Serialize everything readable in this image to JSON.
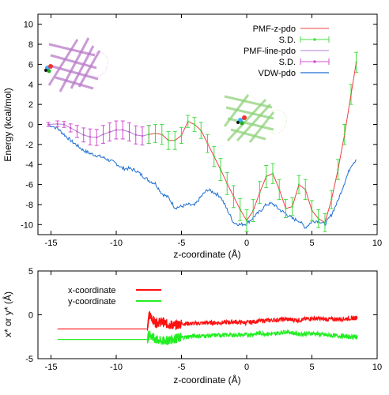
{
  "chart_data": [
    {
      "type": "line",
      "xlabel": "z-coordinate (Å)",
      "ylabel": "Energy (kcal/mol)",
      "xlim": [
        -16,
        10
      ],
      "ylim": [
        -11,
        11
      ],
      "xticks": [
        "-15",
        "-10",
        "-5",
        "0",
        "5",
        "10"
      ],
      "yticks": [
        "-10",
        "-8",
        "-6",
        "-4",
        "-2",
        "0",
        "2",
        "4",
        "6",
        "8",
        "10"
      ],
      "grid": false,
      "legend_position": "top-right",
      "series": [
        {
          "name": "PMF-line-pdo",
          "color": "#b27fd4",
          "error_name": "S.D.",
          "error_color": "#d04fd0",
          "x": [
            -15.2,
            -14.5,
            -14.0,
            -13.5,
            -13.0,
            -12.5,
            -12.0,
            -11.5,
            -11.0,
            -10.5,
            -10.0,
            -9.5,
            -9.0,
            -8.5,
            -8.0,
            -7.5
          ],
          "y": [
            0.0,
            0.05,
            0.0,
            -0.35,
            -0.7,
            -1.05,
            -1.25,
            -1.3,
            -1.0,
            -0.75,
            -0.55,
            -0.55,
            -0.75,
            -1.05,
            -1.15,
            -1.0
          ],
          "err": [
            0.2,
            0.3,
            0.3,
            0.4,
            0.6,
            0.7,
            0.8,
            0.8,
            0.9,
            0.9,
            0.9,
            0.9,
            0.9,
            0.9,
            0.9,
            0.9
          ]
        },
        {
          "name": "PMF-z-pdo",
          "color": "#f04040",
          "error_name": "S.D.",
          "error_color": "#44dd44",
          "x": [
            -7.5,
            -7.0,
            -6.5,
            -6.0,
            -5.5,
            -5.0,
            -4.5,
            -4.0,
            -3.5,
            -3.0,
            -2.5,
            -2.0,
            -1.5,
            -1.0,
            -0.5,
            0.0,
            0.5,
            1.0,
            1.5,
            2.0,
            2.5,
            3.0,
            3.5,
            4.0,
            4.5,
            5.0,
            5.5,
            6.0,
            6.5,
            7.0,
            7.5,
            8.0,
            8.4
          ],
          "y": [
            -1.0,
            -0.9,
            -1.0,
            -1.6,
            -1.6,
            -1.1,
            0.3,
            0.0,
            -0.6,
            -1.9,
            -3.2,
            -4.5,
            -5.9,
            -7.2,
            -8.5,
            -9.6,
            -8.6,
            -6.8,
            -5.2,
            -4.9,
            -6.5,
            -8.4,
            -8.2,
            -6.0,
            -6.5,
            -8.6,
            -9.4,
            -9.8,
            -7.5,
            -4.5,
            -1.0,
            3.0,
            6.2
          ],
          "err": [
            0.9,
            0.9,
            1.0,
            0.9,
            0.9,
            0.8,
            0.6,
            0.7,
            0.8,
            0.9,
            1.0,
            1.1,
            1.1,
            1.1,
            1.1,
            1.1,
            1.1,
            1.1,
            1.1,
            1.0,
            1.0,
            0.9,
            0.9,
            0.9,
            1.0,
            1.0,
            0.9,
            0.9,
            0.9,
            1.0,
            1.0,
            1.0,
            1.0
          ]
        },
        {
          "name": "VDW-pdo",
          "color": "#1f6fd0",
          "x": [
            -15.2,
            -14.5,
            -14.0,
            -13.5,
            -13.0,
            -12.5,
            -12.0,
            -11.5,
            -11.0,
            -10.5,
            -10.0,
            -9.5,
            -9.0,
            -8.5,
            -8.0,
            -7.5,
            -7.0,
            -6.5,
            -6.0,
            -5.5,
            -5.0,
            -4.5,
            -4.0,
            -3.5,
            -3.0,
            -2.5,
            -2.0,
            -1.5,
            -1.0,
            -0.5,
            0.0,
            0.5,
            1.0,
            1.5,
            2.0,
            2.5,
            3.0,
            3.5,
            4.0,
            4.5,
            5.0,
            5.5,
            6.0,
            6.5,
            7.0,
            7.5,
            8.0,
            8.4
          ],
          "y": [
            0.0,
            -0.4,
            -1.0,
            -1.6,
            -2.1,
            -2.6,
            -2.9,
            -3.1,
            -3.3,
            -3.6,
            -3.9,
            -4.4,
            -4.4,
            -4.6,
            -5.1,
            -5.6,
            -5.9,
            -6.9,
            -7.3,
            -8.3,
            -8.2,
            -8.0,
            -8.1,
            -7.2,
            -6.5,
            -6.8,
            -7.2,
            -8.5,
            -9.8,
            -10.0,
            -9.9,
            -9.3,
            -8.7,
            -8.0,
            -7.9,
            -8.5,
            -8.9,
            -9.4,
            -9.6,
            -10.3,
            -9.7,
            -9.6,
            -10.0,
            -9.0,
            -7.6,
            -5.8,
            -4.1,
            -3.5
          ]
        }
      ]
    },
    {
      "type": "line",
      "xlabel": "z-coordinate (Å)",
      "ylabel": "x* or y* (Å)",
      "xlim": [
        -16,
        10
      ],
      "ylim": [
        -5,
        5
      ],
      "xticks": [
        "-15",
        "-10",
        "-5",
        "0",
        "5",
        "10"
      ],
      "yticks": [
        "-5",
        "0",
        "5"
      ],
      "grid": false,
      "legend_position": "top-left",
      "series": [
        {
          "name": "x-coordinate",
          "color": "#ff1010",
          "x": [
            -14.5,
            -7.6,
            -7.5,
            -7.0,
            -6.5,
            -6.0,
            -5.5,
            -5.0,
            -4.0,
            -3.0,
            -2.0,
            -1.0,
            0.0,
            1.0,
            2.0,
            3.0,
            4.0,
            5.0,
            6.0,
            7.0,
            8.0,
            8.5
          ],
          "y": [
            -1.6,
            -1.6,
            0.0,
            -0.9,
            -0.8,
            -1.1,
            -1.2,
            -1.0,
            -1.0,
            -0.9,
            -0.9,
            -0.8,
            -0.9,
            -0.7,
            -0.6,
            -0.5,
            -0.6,
            -0.4,
            -0.5,
            -0.5,
            -0.4,
            -0.3
          ],
          "noise": 0.5
        },
        {
          "name": "y-coordinate",
          "color": "#22ee22",
          "x": [
            -14.5,
            -7.6,
            -7.5,
            -7.0,
            -6.5,
            -6.0,
            -5.5,
            -5.0,
            -4.0,
            -3.0,
            -2.0,
            -1.0,
            0.0,
            1.0,
            2.0,
            3.0,
            4.0,
            5.0,
            6.0,
            7.0,
            8.0,
            8.5
          ],
          "y": [
            -2.8,
            -2.8,
            -2.2,
            -2.8,
            -3.0,
            -2.9,
            -2.7,
            -2.6,
            -2.4,
            -2.4,
            -2.3,
            -2.3,
            -2.3,
            -2.1,
            -2.2,
            -1.9,
            -2.2,
            -2.1,
            -2.3,
            -2.4,
            -2.5,
            -2.5
          ],
          "noise": 0.5
        }
      ]
    }
  ]
}
